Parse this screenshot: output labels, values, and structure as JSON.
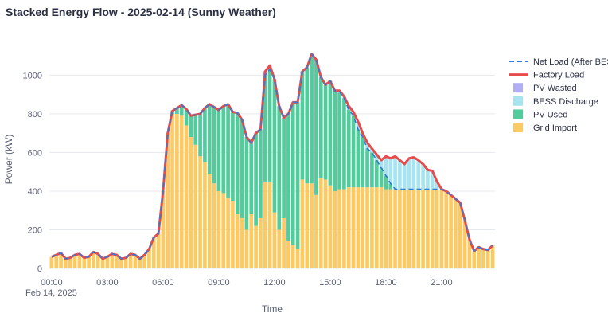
{
  "chart_data": {
    "type": "bar",
    "title": "Stacked Energy Flow - 2025-02-14 (Sunny Weather)",
    "xlabel": "Time",
    "ylabel": "Power (kW)",
    "date_label": "Feb 14, 2025",
    "ylim": [
      0,
      1150
    ],
    "xlim": [
      -0.5,
      95.5
    ],
    "y_ticks": [
      0,
      200,
      400,
      600,
      800,
      1000
    ],
    "x_ticks": [
      {
        "index": 0,
        "label": "00:00"
      },
      {
        "index": 12,
        "label": "03:00"
      },
      {
        "index": 24,
        "label": "06:00"
      },
      {
        "index": 36,
        "label": "09:00"
      },
      {
        "index": 48,
        "label": "12:00"
      },
      {
        "index": 60,
        "label": "15:00"
      },
      {
        "index": 72,
        "label": "18:00"
      },
      {
        "index": 84,
        "label": "21:00"
      }
    ],
    "grid": true,
    "legend_position": "right",
    "interval_minutes": 15,
    "start_time": "00:00",
    "colors": {
      "grid_import": "#fcca63",
      "pv_used": "#52cc9c",
      "bess_discharge": "#a6e4f2",
      "pv_wasted": "#b2aef3",
      "factory_load": "#e84b4b",
      "net_load": "#2a7de1"
    },
    "series": [
      {
        "name": "Net Load (After BESS)",
        "kind": "dashed-line",
        "color": "#2a7de1",
        "values": [
          60,
          70,
          80,
          50,
          55,
          70,
          75,
          55,
          60,
          85,
          75,
          50,
          60,
          75,
          70,
          50,
          55,
          75,
          70,
          50,
          70,
          100,
          160,
          180,
          400,
          700,
          815,
          830,
          845,
          825,
          790,
          795,
          800,
          830,
          850,
          835,
          820,
          840,
          850,
          810,
          805,
          770,
          680,
          650,
          700,
          720,
          1000,
          1030,
          980,
          840,
          780,
          800,
          860,
          860,
          1020,
          1040,
          1110,
          1080,
          990,
          950,
          970,
          920,
          915,
          880,
          820,
          790,
          720,
          680,
          620,
          600,
          560,
          520,
          480,
          440,
          410,
          410,
          410,
          410,
          410,
          410,
          410,
          410,
          410,
          410,
          410,
          400,
          380,
          360,
          340,
          250,
          150,
          90,
          110,
          100,
          95,
          120
        ]
      },
      {
        "name": "Factory Load",
        "kind": "line",
        "color": "#e84b4b",
        "values": [
          60,
          70,
          80,
          50,
          55,
          70,
          75,
          55,
          60,
          85,
          75,
          50,
          60,
          75,
          70,
          50,
          55,
          75,
          70,
          50,
          70,
          100,
          160,
          180,
          400,
          700,
          815,
          830,
          845,
          825,
          790,
          795,
          800,
          830,
          850,
          835,
          820,
          840,
          850,
          810,
          805,
          770,
          680,
          650,
          700,
          720,
          1020,
          1050,
          980,
          840,
          780,
          800,
          860,
          860,
          1020,
          1040,
          1110,
          1080,
          990,
          950,
          970,
          920,
          920,
          890,
          840,
          810,
          760,
          700,
          650,
          620,
          590,
          560,
          580,
          570,
          580,
          560,
          540,
          570,
          575,
          560,
          540,
          510,
          505,
          450,
          410,
          400,
          380,
          360,
          340,
          250,
          150,
          90,
          110,
          100,
          95,
          120
        ]
      },
      {
        "name": "PV Wasted",
        "kind": "bar",
        "color": "#b2aef3",
        "values": [
          0,
          0,
          0,
          0,
          0,
          0,
          0,
          0,
          0,
          0,
          0,
          0,
          0,
          0,
          0,
          0,
          0,
          0,
          0,
          0,
          0,
          0,
          0,
          0,
          0,
          0,
          0,
          0,
          0,
          0,
          0,
          0,
          0,
          0,
          0,
          0,
          0,
          0,
          0,
          0,
          0,
          0,
          0,
          0,
          0,
          0,
          20,
          20,
          0,
          0,
          0,
          0,
          0,
          0,
          0,
          0,
          0,
          0,
          0,
          0,
          0,
          0,
          0,
          0,
          0,
          0,
          0,
          0,
          0,
          0,
          0,
          0,
          0,
          0,
          0,
          0,
          0,
          0,
          0,
          0,
          0,
          0,
          0,
          0,
          0,
          0,
          0,
          0,
          0,
          0,
          0,
          0,
          0,
          0,
          0,
          0
        ]
      },
      {
        "name": "BESS Discharge",
        "kind": "bar",
        "color": "#a6e4f2",
        "values": [
          0,
          0,
          0,
          0,
          0,
          0,
          0,
          0,
          0,
          0,
          0,
          0,
          0,
          0,
          0,
          0,
          0,
          0,
          0,
          0,
          0,
          0,
          0,
          0,
          0,
          0,
          0,
          0,
          0,
          0,
          0,
          0,
          0,
          0,
          0,
          0,
          0,
          0,
          0,
          0,
          0,
          0,
          0,
          0,
          0,
          0,
          0,
          0,
          0,
          0,
          0,
          0,
          0,
          0,
          0,
          0,
          0,
          0,
          0,
          0,
          0,
          0,
          5,
          10,
          20,
          20,
          40,
          20,
          30,
          20,
          30,
          40,
          100,
          130,
          170,
          150,
          130,
          160,
          165,
          150,
          130,
          100,
          95,
          40,
          0,
          0,
          0,
          0,
          0,
          0,
          0,
          0,
          0,
          0,
          0,
          0
        ]
      },
      {
        "name": "PV Used",
        "kind": "bar",
        "color": "#52cc9c",
        "values": [
          0,
          0,
          0,
          0,
          0,
          0,
          0,
          0,
          0,
          0,
          0,
          0,
          0,
          0,
          0,
          0,
          0,
          0,
          0,
          0,
          0,
          0,
          0,
          0,
          0,
          0,
          15,
          30,
          55,
          85,
          110,
          155,
          220,
          280,
          360,
          395,
          420,
          450,
          485,
          460,
          525,
          510,
          480,
          370,
          480,
          460,
          550,
          580,
          690,
          640,
          520,
          660,
          740,
          760,
          560,
          600,
          670,
          700,
          520,
          490,
          540,
          520,
          500,
          470,
          400,
          370,
          300,
          260,
          200,
          180,
          140,
          100,
          70,
          30,
          0,
          0,
          0,
          0,
          0,
          0,
          0,
          0,
          0,
          0,
          0,
          0,
          0,
          0,
          0,
          0,
          0,
          0,
          0,
          0,
          0,
          0
        ]
      },
      {
        "name": "Grid Import",
        "kind": "bar",
        "color": "#fcca63",
        "values": [
          60,
          70,
          80,
          50,
          55,
          70,
          75,
          55,
          60,
          85,
          75,
          50,
          60,
          75,
          70,
          50,
          55,
          75,
          70,
          50,
          70,
          100,
          160,
          180,
          400,
          700,
          800,
          800,
          790,
          740,
          680,
          640,
          580,
          550,
          490,
          440,
          400,
          390,
          365,
          350,
          280,
          260,
          200,
          280,
          220,
          260,
          450,
          450,
          290,
          200,
          260,
          140,
          120,
          100,
          460,
          440,
          440,
          380,
          470,
          460,
          430,
          400,
          410,
          410,
          420,
          420,
          420,
          420,
          420,
          420,
          420,
          420,
          410,
          410,
          410,
          410,
          410,
          410,
          410,
          410,
          410,
          410,
          410,
          410,
          410,
          400,
          380,
          360,
          340,
          250,
          150,
          90,
          110,
          100,
          95,
          120
        ]
      }
    ]
  }
}
